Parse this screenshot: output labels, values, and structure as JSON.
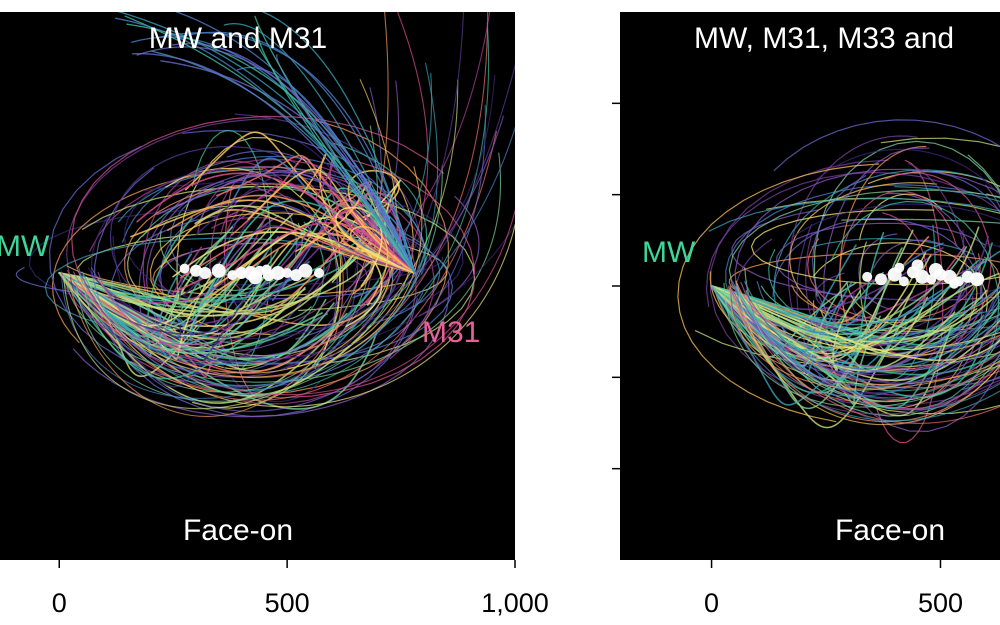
{
  "chart_data": [
    {
      "type": "line",
      "title": "MW and M31",
      "view": "Face-on",
      "xticks": [
        0,
        500,
        1000
      ],
      "xtick_labels": [
        "0",
        "500",
        "1,000"
      ],
      "xlim": [
        -130,
        1000
      ],
      "ylim": [
        -660,
        600
      ],
      "galaxies": [
        {
          "name": "MW",
          "label": "MW",
          "x": 0,
          "y": 0,
          "color": "#3fd69a"
        },
        {
          "name": "M31",
          "label": "M31",
          "x": 780,
          "y": 0,
          "color": "#e8609a"
        }
      ],
      "center_points": {
        "color": "#ffffff",
        "x": [
          275,
          320,
          350,
          380,
          400,
          420,
          440,
          460,
          480,
          500,
          520,
          540,
          570,
          300,
          430,
          455
        ],
        "y": [
          10,
          0,
          5,
          -5,
          0,
          0,
          5,
          -5,
          0,
          0,
          -5,
          5,
          0,
          5,
          -10,
          8
        ]
      }
    },
    {
      "type": "line",
      "title": "MW, M31, M33 and",
      "view": "Face-on",
      "xticks": [
        0,
        500
      ],
      "xtick_labels": [
        "0",
        "500"
      ],
      "xlim": [
        -200,
        630
      ],
      "ylim": [
        -600,
        600
      ],
      "yticks": [
        -400,
        -200,
        0,
        200,
        400
      ],
      "galaxies": [
        {
          "name": "MW",
          "label": "MW",
          "x": 0,
          "y": 0,
          "color": "#3fd69a"
        }
      ],
      "center_points": {
        "color": "#ffffff",
        "x": [
          340,
          370,
          400,
          420,
          440,
          460,
          480,
          500,
          520,
          540,
          560,
          580,
          410,
          450,
          490,
          530
        ],
        "y": [
          20,
          15,
          25,
          10,
          30,
          20,
          15,
          25,
          20,
          10,
          20,
          15,
          40,
          45,
          35,
          5
        ]
      }
    }
  ]
}
